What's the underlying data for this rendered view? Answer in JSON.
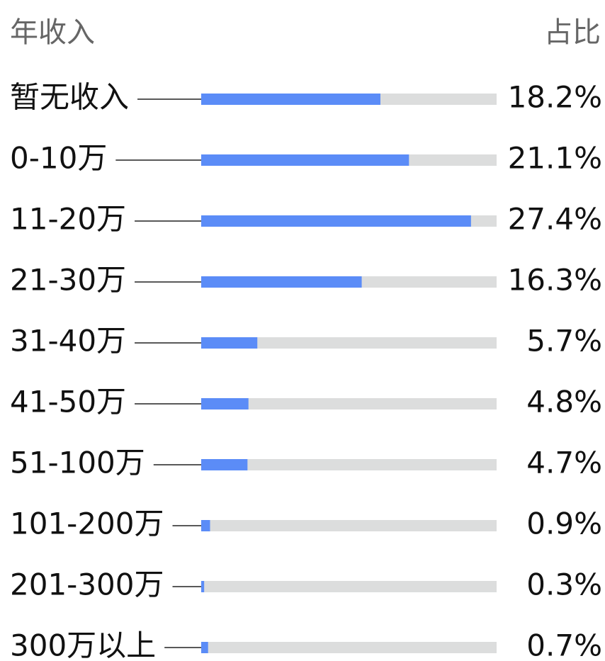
{
  "chart_data": {
    "type": "bar",
    "orientation": "horizontal",
    "category_header": "年收入",
    "value_header": "占比",
    "categories": [
      "暂无收入",
      "0-10万",
      "11-20万",
      "21-30万",
      "31-40万",
      "41-50万",
      "51-100万",
      "101-200万",
      "201-300万",
      "300万以上"
    ],
    "values": [
      18.2,
      21.1,
      27.4,
      16.3,
      5.7,
      4.8,
      4.7,
      0.9,
      0.3,
      0.7
    ],
    "value_labels": [
      "18.2%",
      "21.1%",
      "27.4%",
      "16.3%",
      "5.7%",
      "4.8%",
      "4.7%",
      "0.9%",
      "0.3%",
      "0.7%"
    ],
    "color": "#5b8cf7",
    "track_color": "#dcdddd",
    "xlim": [
      0,
      30
    ]
  }
}
